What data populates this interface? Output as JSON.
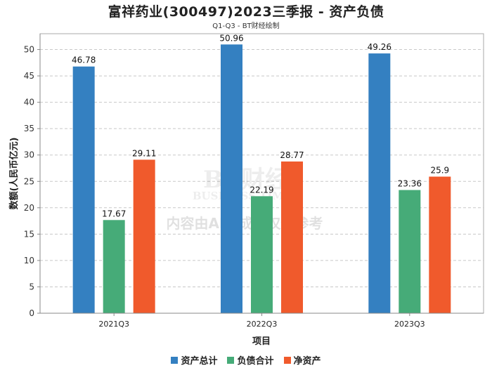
{
  "chart_data": {
    "type": "bar",
    "title": "富祥药业(300497)2023三季报 - 资产负债",
    "subtitle": "Q1-Q3 - BT财经绘制",
    "xlabel": "项目",
    "ylabel": "数额(人民币亿元)",
    "ylim": [
      0,
      53
    ],
    "yticks": [
      0,
      5,
      10,
      15,
      20,
      25,
      30,
      35,
      40,
      45,
      50
    ],
    "grid": true,
    "categories": [
      "2021Q3",
      "2022Q3",
      "2023Q3"
    ],
    "series": [
      {
        "name": "资产总计",
        "color": "#3480c1",
        "values": [
          46.78,
          50.96,
          49.26
        ],
        "labels": [
          "46.78",
          "50.96",
          "49.26"
        ]
      },
      {
        "name": "负债合计",
        "color": "#46ab78",
        "values": [
          17.67,
          22.19,
          23.36
        ],
        "labels": [
          "17.67",
          "22.19",
          "23.36"
        ]
      },
      {
        "name": "净资产",
        "color": "#f05a2c",
        "values": [
          29.11,
          28.77,
          25.9
        ],
        "labels": [
          "29.11",
          "28.77",
          "25.9"
        ]
      }
    ],
    "legend_position": "bottom"
  },
  "watermark": {
    "brand": "BT财经",
    "brand_en": "BUSINESS TIMES",
    "notice": "内容由AI生成，仅供参考"
  }
}
